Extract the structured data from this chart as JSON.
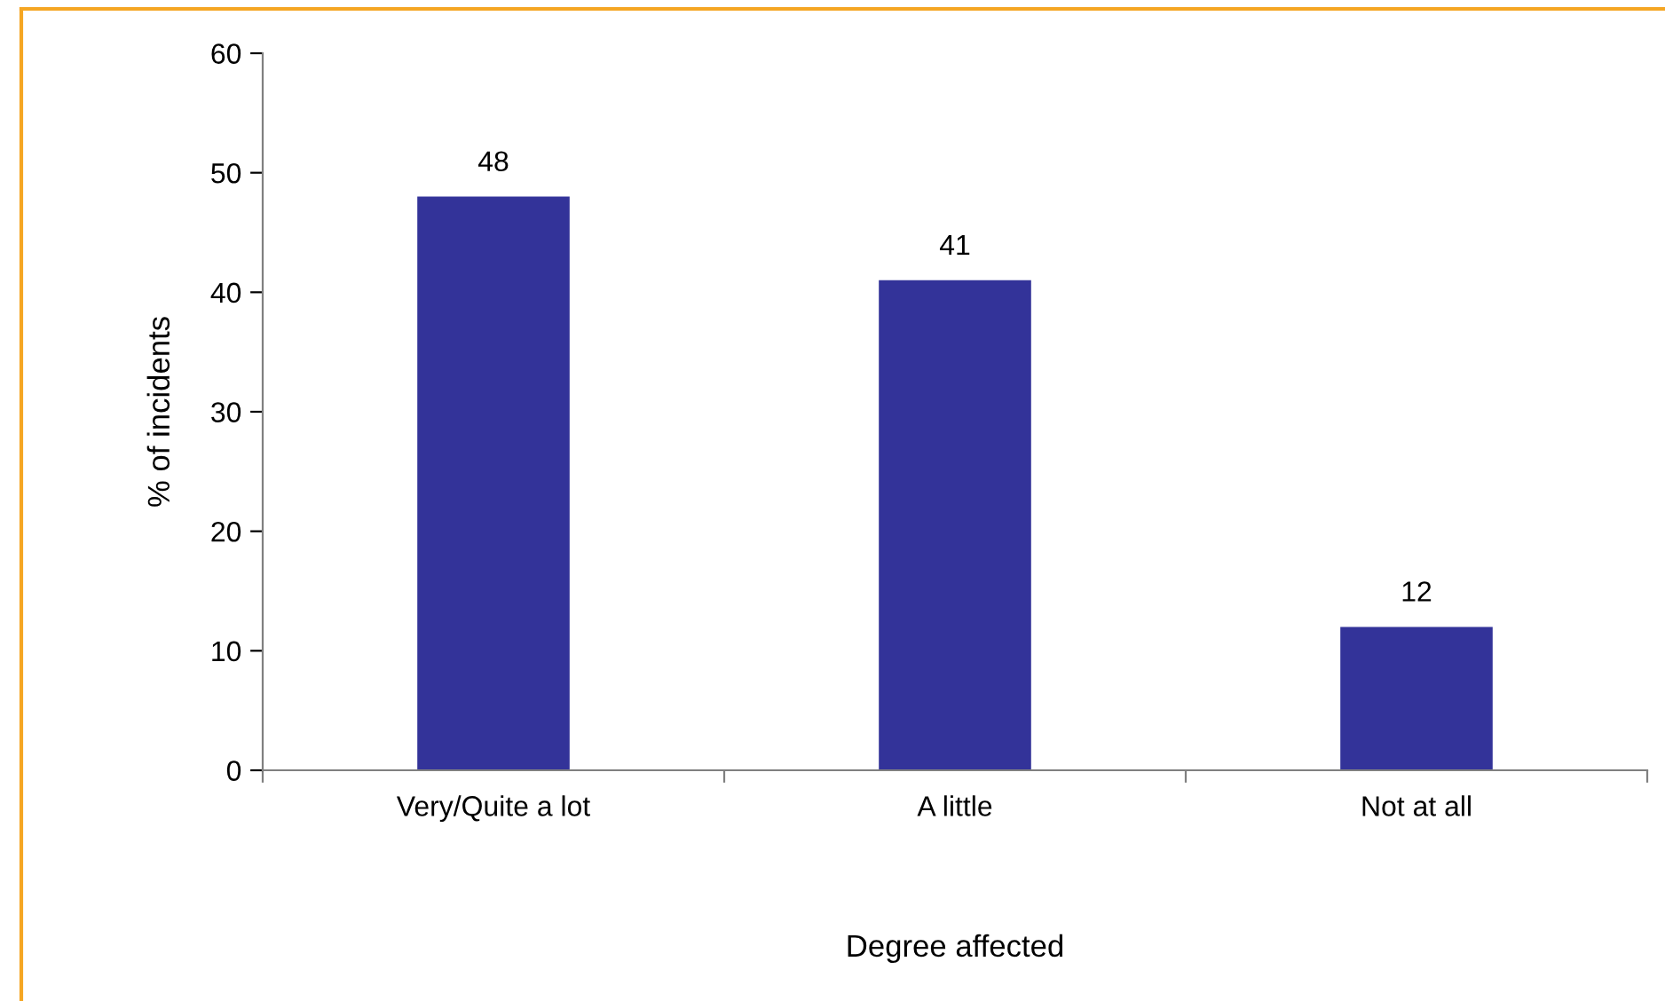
{
  "chart_data": {
    "type": "bar",
    "xlabel": "Degree affected",
    "ylabel": "% of incidents",
    "categories": [
      "Very/Quite a lot",
      "A little",
      "Not at all"
    ],
    "values": [
      48,
      41,
      12
    ],
    "color": "#333399",
    "ylim": [
      0,
      60
    ],
    "yticks": [
      0,
      10,
      20,
      30,
      40,
      50,
      60
    ],
    "grid": false,
    "data_labels": true
  }
}
